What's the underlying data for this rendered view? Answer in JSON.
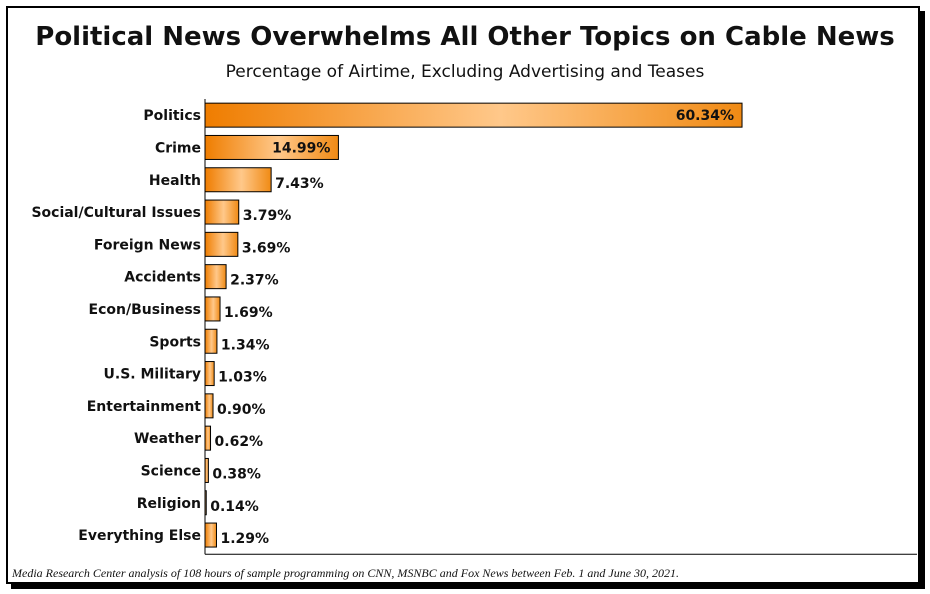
{
  "chart_data": {
    "type": "bar",
    "orientation": "horizontal",
    "title": "Political News Overwhelms All Other Topics on Cable News",
    "subtitle": "Percentage of Airtime, Excluding Advertising and Teases",
    "footnote": "Media Research Center analysis of 108 hours of sample programming on CNN, MSNBC and Fox News between Feb. 1 and June 30, 2021.",
    "categories": [
      "Politics",
      "Crime",
      "Health",
      "Social/Cultural Issues",
      "Foreign News",
      "Accidents",
      "Econ/Business",
      "Sports",
      "U.S. Military",
      "Entertainment",
      "Weather",
      "Science",
      "Religion",
      "Everything Else"
    ],
    "values": [
      60.34,
      14.99,
      7.43,
      3.79,
      3.69,
      2.37,
      1.69,
      1.34,
      1.03,
      0.9,
      0.62,
      0.38,
      0.14,
      1.29
    ],
    "value_labels": [
      "60.34%",
      "14.99%",
      "7.43%",
      "3.79%",
      "3.69%",
      "2.37%",
      "1.69%",
      "1.34%",
      "1.03%",
      "0.90%",
      "0.62%",
      "0.38%",
      "0.14%",
      "1.29%"
    ],
    "xlim": [
      0,
      80
    ],
    "grid": false,
    "legend": "none",
    "colors": {
      "bar_edge": "#f07c00",
      "bar_light": "#ffd9a6",
      "bar_dark": "#ef7d00",
      "outline": "#000000"
    }
  }
}
